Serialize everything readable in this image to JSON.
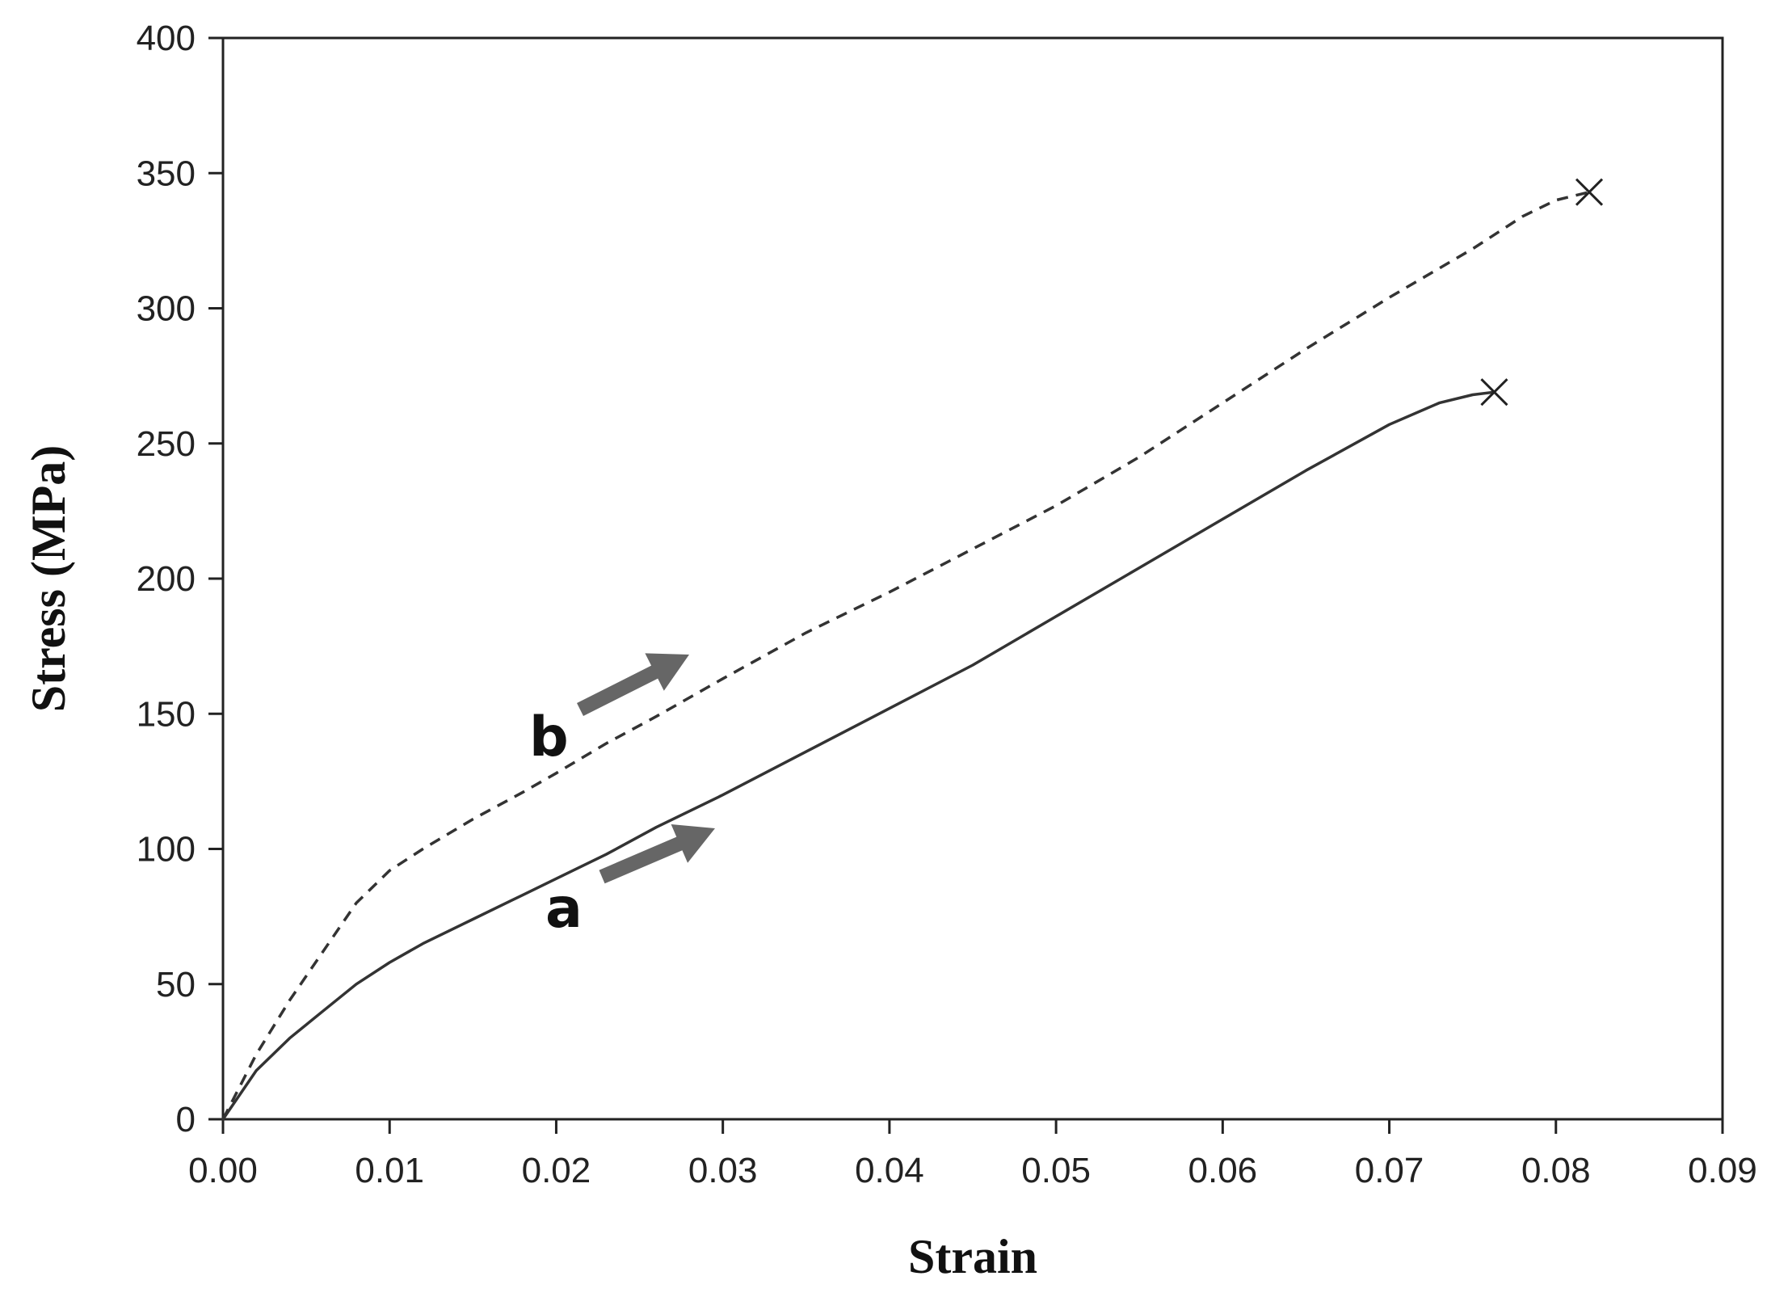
{
  "chart_data": {
    "type": "line",
    "title": "",
    "xlabel": "Strain",
    "ylabel": "Stress (MPa)",
    "xlim": [
      0,
      0.09
    ],
    "ylim": [
      0,
      400
    ],
    "x_ticks": [
      "0.00",
      "0.01",
      "0.02",
      "0.03",
      "0.04",
      "0.05",
      "0.06",
      "0.07",
      "0.08",
      "0.09"
    ],
    "y_ticks": [
      "0",
      "50",
      "100",
      "150",
      "200",
      "250",
      "300",
      "350",
      "400"
    ],
    "grid": false,
    "legend": "none",
    "series": [
      {
        "name": "a",
        "line_style": "solid",
        "color": "#333333",
        "end_marker": "x",
        "x": [
          0,
          0.002,
          0.004,
          0.006,
          0.008,
          0.01,
          0.012,
          0.015,
          0.018,
          0.02,
          0.023,
          0.026,
          0.03,
          0.035,
          0.04,
          0.045,
          0.05,
          0.055,
          0.06,
          0.065,
          0.07,
          0.073,
          0.075,
          0.0763
        ],
        "y": [
          0,
          18,
          30,
          40,
          50,
          58,
          65,
          74,
          83,
          89,
          98,
          108,
          120,
          136,
          152,
          168,
          186,
          204,
          222,
          240,
          257,
          265,
          268,
          269
        ]
      },
      {
        "name": "b",
        "line_style": "dashed",
        "color": "#333333",
        "end_marker": "x",
        "x": [
          0,
          0.002,
          0.004,
          0.006,
          0.008,
          0.01,
          0.012,
          0.015,
          0.018,
          0.02,
          0.023,
          0.026,
          0.03,
          0.035,
          0.04,
          0.045,
          0.05,
          0.055,
          0.06,
          0.065,
          0.07,
          0.075,
          0.078,
          0.08,
          0.082
        ],
        "y": [
          0,
          24,
          44,
          62,
          80,
          92,
          100,
          111,
          121,
          128,
          139,
          149,
          163,
          180,
          195,
          211,
          227,
          245,
          265,
          285,
          304,
          322,
          334,
          340,
          343
        ]
      }
    ],
    "annotations": [
      {
        "text": "a",
        "series": "a"
      },
      {
        "text": "b",
        "series": "b"
      }
    ]
  }
}
